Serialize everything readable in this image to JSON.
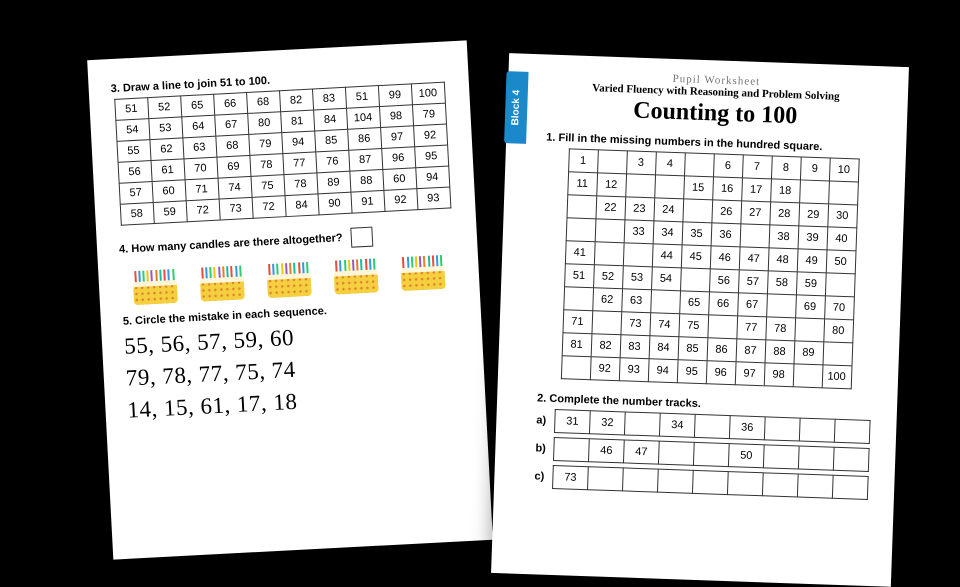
{
  "left": {
    "q3": {
      "label": "3. Draw a line to join 51 to 100.",
      "grid": [
        [
          "51",
          "52",
          "65",
          "66",
          "68",
          "82",
          "83",
          "51",
          "99",
          "100"
        ],
        [
          "54",
          "53",
          "64",
          "67",
          "80",
          "81",
          "84",
          "104",
          "98",
          "79"
        ],
        [
          "55",
          "62",
          "63",
          "68",
          "79",
          "94",
          "85",
          "86",
          "97",
          "92"
        ],
        [
          "56",
          "61",
          "70",
          "69",
          "78",
          "77",
          "76",
          "87",
          "96",
          "95"
        ],
        [
          "57",
          "60",
          "71",
          "74",
          "75",
          "78",
          "89",
          "88",
          "60",
          "94"
        ],
        [
          "58",
          "59",
          "72",
          "73",
          "72",
          "84",
          "90",
          "91",
          "92",
          "93"
        ]
      ]
    },
    "q4": {
      "label": "4. How many candles are there altogether?",
      "candle_colors": [
        "#e74c3c",
        "#3498db",
        "#2ecc71",
        "#f1c40f",
        "#9b59b6",
        "#e67e22",
        "#1abc9c",
        "#e74c3c",
        "#3498db",
        "#2ecc71"
      ],
      "cake_count": 5
    },
    "q5": {
      "label": "5. Circle the mistake in each sequence.",
      "seq1": "55, 56, 57, 59, 60",
      "seq2": "79, 78, 77, 75, 74",
      "seq3": "14, 15, 61, 17, 18"
    }
  },
  "right": {
    "block_tab": "Block 4",
    "pupil": "Pupil Worksheet",
    "subtitle": "Varied Fluency with Reasoning and Problem Solving",
    "title": "Counting to 100",
    "q1": {
      "label": "1. Fill in the missing numbers in the hundred square.",
      "grid": [
        [
          "1",
          "",
          "3",
          "4",
          "",
          "6",
          "7",
          "8",
          "9",
          "10"
        ],
        [
          "11",
          "12",
          "",
          "",
          "15",
          "16",
          "17",
          "18",
          "",
          ""
        ],
        [
          "",
          "22",
          "23",
          "24",
          "",
          "26",
          "27",
          "28",
          "29",
          "30"
        ],
        [
          "",
          "",
          "33",
          "34",
          "35",
          "36",
          "",
          "38",
          "39",
          "40"
        ],
        [
          "41",
          "",
          "",
          "44",
          "45",
          "46",
          "47",
          "48",
          "49",
          "50"
        ],
        [
          "51",
          "52",
          "53",
          "54",
          "",
          "56",
          "57",
          "58",
          "59",
          ""
        ],
        [
          "",
          "62",
          "63",
          "",
          "65",
          "66",
          "67",
          "",
          "69",
          "70"
        ],
        [
          "71",
          "",
          "73",
          "74",
          "75",
          "",
          "77",
          "78",
          "",
          "80"
        ],
        [
          "81",
          "82",
          "83",
          "84",
          "85",
          "86",
          "87",
          "88",
          "89",
          ""
        ],
        [
          "",
          "92",
          "93",
          "94",
          "95",
          "96",
          "97",
          "98",
          "",
          "100"
        ]
      ]
    },
    "q2": {
      "label": "2. Complete the number tracks.",
      "tracks": [
        {
          "lbl": "a)",
          "cells": [
            "31",
            "32",
            "",
            "34",
            "",
            "36",
            "",
            "",
            ""
          ]
        },
        {
          "lbl": "b)",
          "cells": [
            "",
            "46",
            "47",
            "",
            "",
            "50",
            "",
            "",
            ""
          ]
        },
        {
          "lbl": "c)",
          "cells": [
            "73",
            "",
            "",
            "",
            "",
            "",
            "",
            "",
            ""
          ]
        }
      ]
    }
  }
}
